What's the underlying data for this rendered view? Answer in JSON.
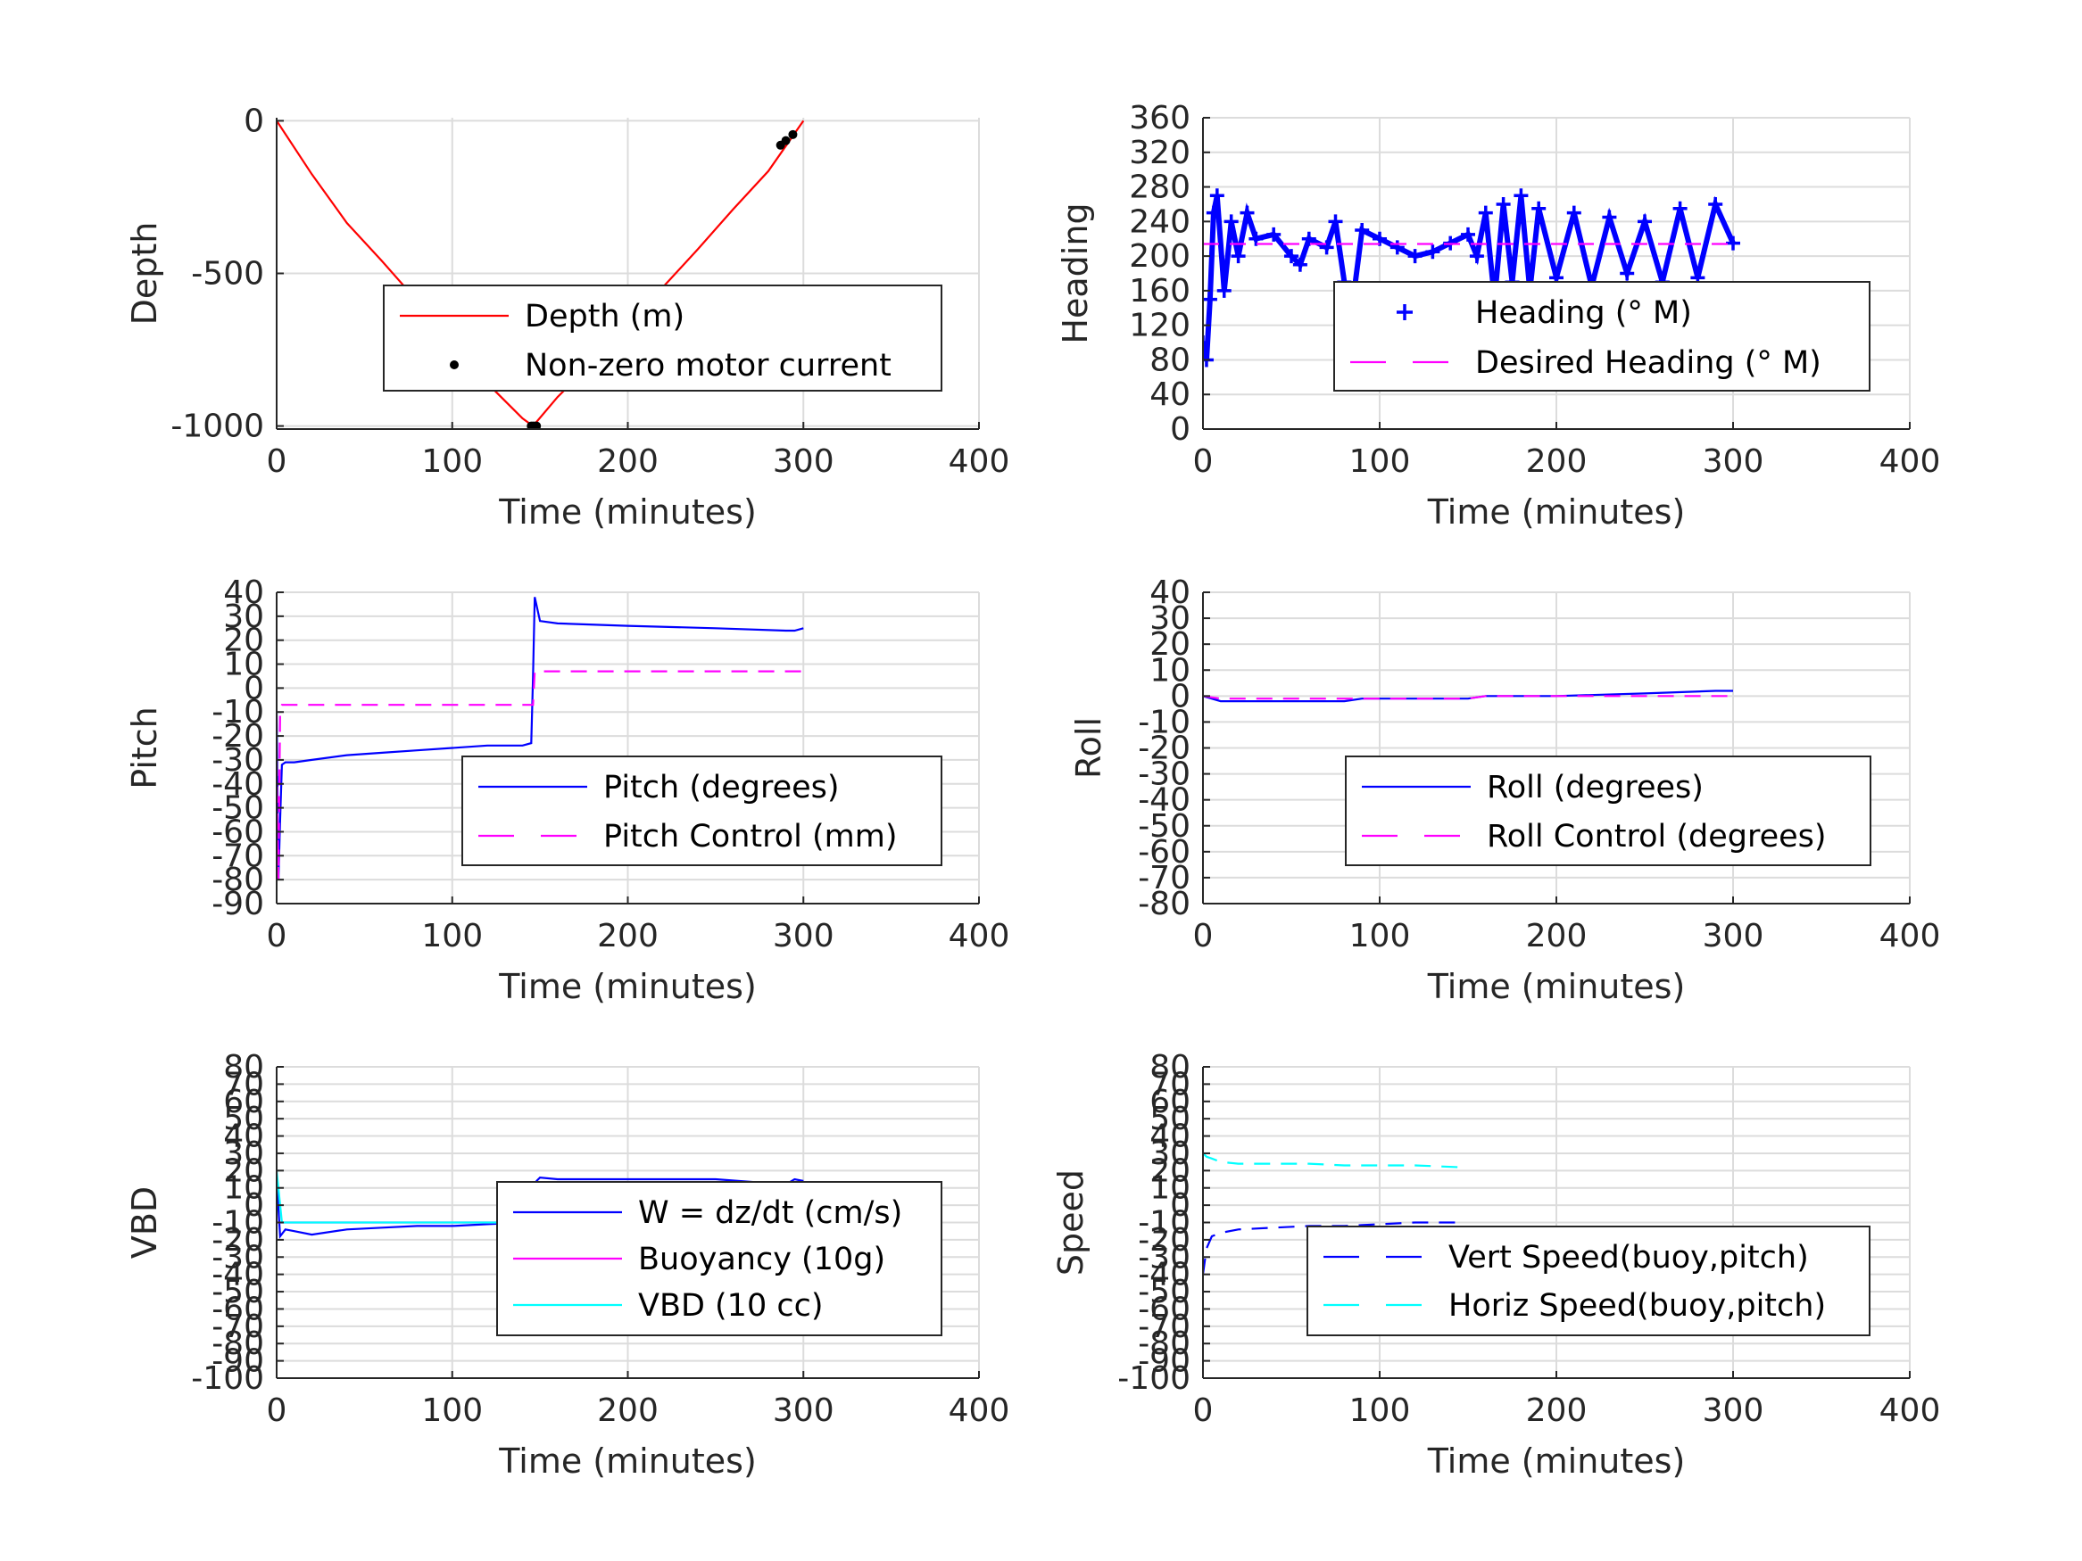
{
  "chart_data": [
    {
      "id": "depth",
      "type": "line",
      "xlabel": "Time (minutes)",
      "ylabel": "Depth",
      "xlim": [
        0,
        400
      ],
      "ylim": [
        -1010,
        10
      ],
      "xticks": [
        0,
        100,
        200,
        300,
        400
      ],
      "yticks": [
        -1000,
        -500,
        0
      ],
      "ytick_labels": [
        "-1000",
        "-500",
        "0"
      ],
      "grid": true,
      "legend_position": "lower-right",
      "series": [
        {
          "name": "Depth (m)",
          "color": "#ff0000",
          "style": "line",
          "x": [
            0,
            20,
            40,
            60,
            80,
            100,
            120,
            140,
            146,
            160,
            180,
            200,
            220,
            240,
            260,
            280,
            300
          ],
          "y": [
            0,
            -175,
            -335,
            -460,
            -590,
            -730,
            -860,
            -975,
            -1000,
            -905,
            -790,
            -670,
            -545,
            -420,
            -290,
            -165,
            0
          ]
        },
        {
          "name": "Non-zero motor current",
          "color": "#000000",
          "style": "dots",
          "x": [
            145,
            146,
            147,
            148,
            287,
            290,
            294
          ],
          "y": [
            -1000,
            -1000,
            -1000,
            -1000,
            -80,
            -65,
            -45
          ]
        }
      ]
    },
    {
      "id": "heading",
      "type": "scatter",
      "xlabel": "Time (minutes)",
      "ylabel": "Heading",
      "xlim": [
        0,
        400
      ],
      "ylim": [
        0,
        360
      ],
      "xticks": [
        0,
        100,
        200,
        300,
        400
      ],
      "yticks": [
        0,
        40,
        80,
        120,
        160,
        200,
        240,
        280,
        320,
        360
      ],
      "ytick_labels": [
        "0",
        "40",
        "80",
        "120",
        "160",
        "200",
        "240",
        "280",
        "320",
        "360"
      ],
      "grid": true,
      "legend_position": "lower-right",
      "series": [
        {
          "name": "Heading (° M)",
          "color": "#0000ff",
          "style": "plus",
          "x": [
            0,
            2,
            4,
            6,
            8,
            12,
            16,
            20,
            25,
            30,
            40,
            50,
            55,
            60,
            70,
            75,
            80,
            85,
            90,
            100,
            110,
            120,
            130,
            140,
            150,
            155,
            160,
            165,
            170,
            175,
            180,
            185,
            190,
            200,
            210,
            220,
            230,
            240,
            250,
            260,
            270,
            280,
            290,
            300
          ],
          "y": [
            100,
            80,
            150,
            250,
            270,
            160,
            240,
            200,
            250,
            220,
            225,
            200,
            190,
            220,
            210,
            240,
            170,
            150,
            230,
            220,
            210,
            200,
            205,
            215,
            225,
            200,
            250,
            150,
            260,
            170,
            270,
            160,
            255,
            175,
            250,
            165,
            245,
            180,
            240,
            170,
            255,
            175,
            260,
            215
          ]
        },
        {
          "name": "Desired Heading (° M)",
          "color": "#ff00ff",
          "style": "dash",
          "x": [
            0,
            300
          ],
          "y": [
            214,
            214
          ]
        }
      ]
    },
    {
      "id": "pitch",
      "type": "line",
      "xlabel": "Time (minutes)",
      "ylabel": "Pitch",
      "xlim": [
        0,
        400
      ],
      "ylim": [
        -90,
        40
      ],
      "xticks": [
        0,
        100,
        200,
        300,
        400
      ],
      "yticks": [
        -90,
        -80,
        -70,
        -60,
        -50,
        -40,
        -30,
        -20,
        -10,
        0,
        10,
        20,
        30,
        40
      ],
      "ytick_labels": [
        "-90",
        "-80",
        "-70",
        "-60",
        "-50",
        "-40",
        "-30",
        "-20",
        "-10",
        "0",
        "10",
        "20",
        "30",
        "40"
      ],
      "grid": true,
      "legend_position": "lower-right",
      "series": [
        {
          "name": "Pitch (degrees)",
          "color": "#0000ff",
          "style": "line",
          "x": [
            0,
            1,
            2,
            3,
            5,
            10,
            20,
            40,
            60,
            80,
            100,
            120,
            140,
            145,
            146,
            147,
            150,
            160,
            200,
            250,
            290,
            295,
            300
          ],
          "y": [
            -10,
            -80,
            -55,
            -32,
            -31,
            -31,
            -30,
            -28,
            -27,
            -26,
            -25,
            -24,
            -24,
            -23,
            5,
            38,
            28,
            27,
            26,
            25,
            24,
            24,
            25
          ]
        },
        {
          "name": "Pitch Control (mm)",
          "color": "#ff00ff",
          "style": "dash",
          "x": [
            0,
            1,
            2,
            3,
            10,
            50,
            100,
            130,
            140,
            146,
            147,
            160,
            200,
            250,
            300
          ],
          "y": [
            -30,
            -80,
            -10,
            -7,
            -7,
            -7,
            -7,
            -7,
            -7,
            -7,
            7,
            7,
            7,
            7,
            7
          ]
        }
      ]
    },
    {
      "id": "roll",
      "type": "line",
      "xlabel": "Time (minutes)",
      "ylabel": "Roll",
      "xlim": [
        0,
        400
      ],
      "ylim": [
        -80,
        40
      ],
      "xticks": [
        0,
        100,
        200,
        300,
        400
      ],
      "yticks": [
        -80,
        -70,
        -60,
        -50,
        -40,
        -30,
        -20,
        -10,
        0,
        10,
        20,
        30,
        40
      ],
      "ytick_labels": [
        "-80",
        "-70",
        "-60",
        "-50",
        "-40",
        "-30",
        "-20",
        "-10",
        "0",
        "10",
        "20",
        "30",
        "40"
      ],
      "grid": true,
      "legend_position": "lower-right",
      "series": [
        {
          "name": "Roll (degrees)",
          "color": "#0000ff",
          "style": "line",
          "x": [
            0,
            10,
            25,
            50,
            80,
            90,
            100,
            150,
            160,
            200,
            250,
            290,
            300
          ],
          "y": [
            0,
            -2,
            -2,
            -2,
            -2,
            -1,
            -1,
            -1,
            0,
            0,
            1,
            2,
            2
          ]
        },
        {
          "name": "Roll Control (degrees)",
          "color": "#ff00ff",
          "style": "dash",
          "x": [
            0,
            10,
            25,
            50,
            80,
            90,
            100,
            150,
            160,
            200,
            250,
            290,
            300
          ],
          "y": [
            0,
            -1,
            -1,
            -1,
            -1,
            -1,
            -1,
            -1,
            0,
            0,
            0,
            0,
            0
          ]
        }
      ]
    },
    {
      "id": "vbd",
      "type": "line",
      "xlabel": "Time (minutes)",
      "ylabel": "VBD",
      "xlim": [
        0,
        400
      ],
      "ylim": [
        -100,
        80
      ],
      "xticks": [
        0,
        100,
        200,
        300,
        400
      ],
      "yticks": [
        -100,
        -90,
        -80,
        -70,
        -60,
        -50,
        -40,
        -30,
        -20,
        -10,
        0,
        10,
        20,
        30,
        40,
        50,
        60,
        70,
        80
      ],
      "ytick_labels": [
        "-100",
        "-90",
        "-80",
        "-70",
        "-60",
        "-50",
        "-40",
        "-30",
        "-20",
        "-10",
        "0",
        "10",
        "20",
        "30",
        "40",
        "50",
        "60",
        "70",
        "80"
      ],
      "grid": true,
      "legend_position": "lower-right",
      "series": [
        {
          "name": "W = dz/dt (cm/s)",
          "color": "#0000ff",
          "style": "line",
          "x": [
            0,
            2,
            5,
            10,
            20,
            40,
            60,
            80,
            100,
            120,
            140,
            146,
            148,
            150,
            160,
            200,
            250,
            290,
            295,
            300
          ],
          "y": [
            15,
            -18,
            -14,
            -15,
            -17,
            -14,
            -13,
            -12,
            -12,
            -11,
            -10,
            -10,
            14,
            16,
            15,
            15,
            15,
            12,
            15,
            14
          ]
        },
        {
          "name": "Buoyancy (10g)",
          "color": "#ff00ff",
          "style": "line",
          "x": [
            0,
            5,
            50,
            100,
            146,
            148,
            200,
            250,
            300
          ],
          "y": [
            -10,
            -10,
            -10,
            -10,
            -10,
            12,
            12,
            12,
            12
          ]
        },
        {
          "name": "VBD (10 cc)",
          "color": "#00ffff",
          "style": "line",
          "x": [
            0,
            3,
            5,
            50,
            100,
            146,
            148,
            150,
            200,
            250,
            300
          ],
          "y": [
            20,
            -10,
            -10,
            -10,
            -10,
            -10,
            10,
            12,
            12,
            12,
            12
          ]
        }
      ]
    },
    {
      "id": "speed",
      "type": "line",
      "xlabel": "Time (minutes)",
      "ylabel": "Speed",
      "xlim": [
        0,
        400
      ],
      "ylim": [
        -100,
        80
      ],
      "xticks": [
        0,
        100,
        200,
        300,
        400
      ],
      "yticks": [
        -100,
        -90,
        -80,
        -70,
        -60,
        -50,
        -40,
        -30,
        -20,
        -10,
        0,
        10,
        20,
        30,
        40,
        50,
        60,
        70,
        80
      ],
      "ytick_labels": [
        "-100",
        "-90",
        "-80",
        "-70",
        "-60",
        "-50",
        "-40",
        "-30",
        "-20",
        "-10",
        "0",
        "10",
        "20",
        "30",
        "40",
        "50",
        "60",
        "70",
        "80"
      ],
      "grid": true,
      "legend_position": "lower-right",
      "series": [
        {
          "name": "Vert Speed(buoy,pitch)",
          "color": "#0000ff",
          "style": "dash",
          "x": [
            0,
            2,
            5,
            10,
            20,
            40,
            60,
            80,
            100,
            120,
            145
          ],
          "y": [
            -40,
            -25,
            -18,
            -16,
            -14,
            -13,
            -12,
            -12,
            -11,
            -10,
            -10
          ]
        },
        {
          "name": "Horiz Speed(buoy,pitch)",
          "color": "#00ffff",
          "style": "dash",
          "x": [
            0,
            2,
            5,
            10,
            20,
            40,
            60,
            80,
            100,
            120,
            145
          ],
          "y": [
            30,
            28,
            27,
            25,
            24,
            24,
            24,
            23,
            23,
            23,
            22
          ]
        }
      ]
    }
  ]
}
